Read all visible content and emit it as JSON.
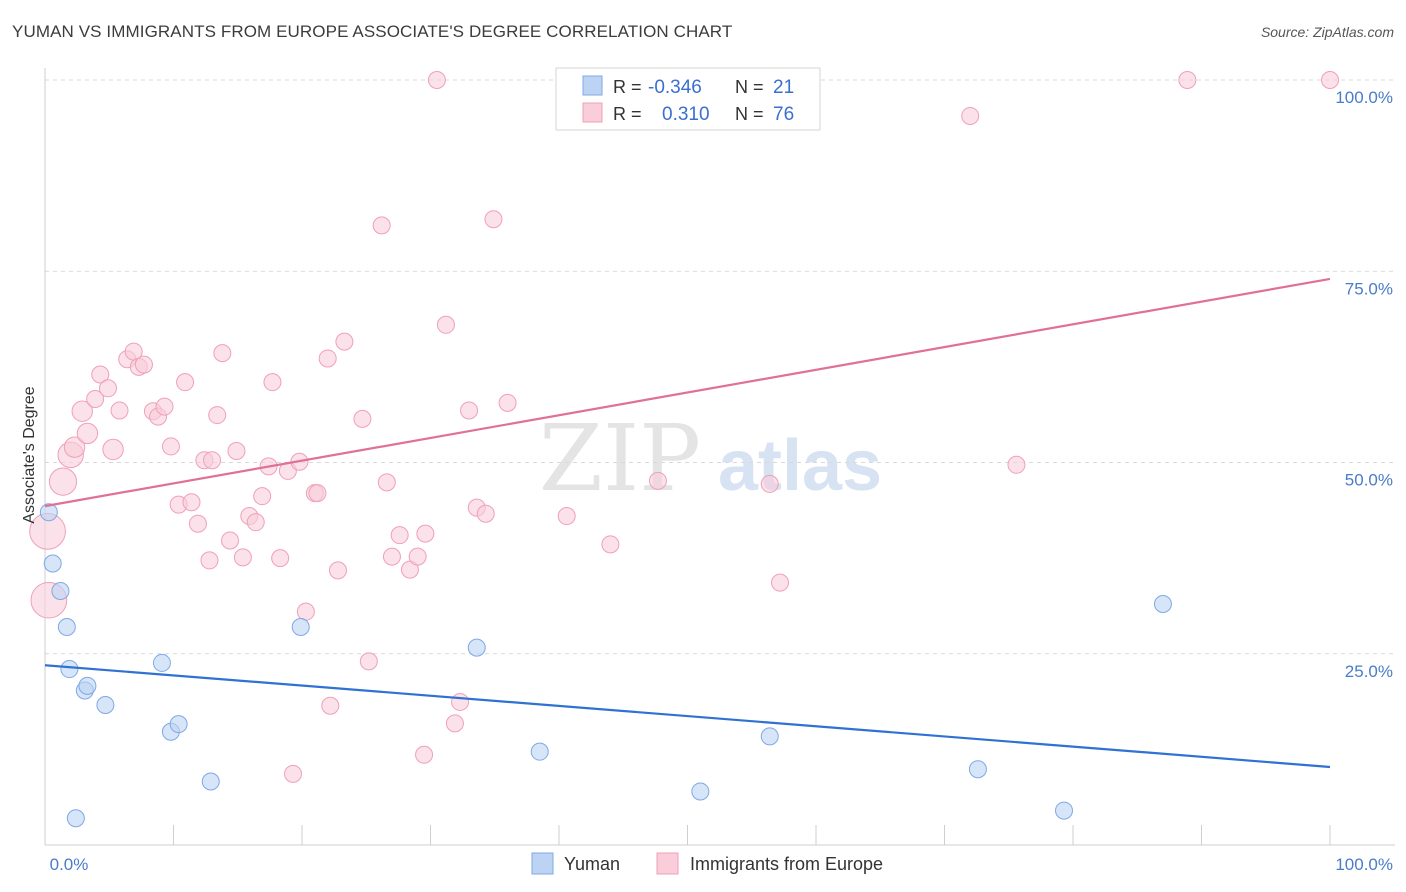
{
  "header": {
    "title": "YUMAN VS IMMIGRANTS FROM EUROPE ASSOCIATE'S DEGREE CORRELATION CHART",
    "source": "Source: ZipAtlas.com"
  },
  "watermark": {
    "part1": "ZIP",
    "part2": "atlas"
  },
  "legend": {
    "rows": [
      {
        "r_label": "R =",
        "r_value": "-0.346",
        "n_label": "N =",
        "n_value": "21",
        "color": "#7fa8e6"
      },
      {
        "r_label": "R =",
        "r_value": "0.310",
        "n_label": "N =",
        "n_value": "76",
        "color": "#f0a0b8"
      }
    ]
  },
  "bottom_legend": [
    "Yuman",
    "Immigrants from Europe"
  ],
  "chart_data": {
    "type": "scatter",
    "title": "YUMAN VS IMMIGRANTS FROM EUROPE ASSOCIATE'S DEGREE CORRELATION CHART",
    "xlabel": "",
    "ylabel": "Associate's Degree",
    "xlim": [
      0,
      100
    ],
    "ylim": [
      0,
      100
    ],
    "x_tick_labels": [
      "0.0%",
      "100.0%"
    ],
    "y_ticks": [
      25,
      50,
      75,
      100
    ],
    "y_tick_labels": [
      "25.0%",
      "50.0%",
      "75.0%",
      "100.0%"
    ],
    "grid": true,
    "legend_position": "top-center",
    "series": [
      {
        "name": "Yuman",
        "color": "#7fa8e6",
        "line_color": "#2f72d2",
        "trend": {
          "x": [
            0,
            100
          ],
          "y": [
            23.5,
            10.2
          ]
        },
        "points": [
          {
            "x": 0.3,
            "y": 43.5,
            "s": 1
          },
          {
            "x": 0.6,
            "y": 36.8,
            "s": 1
          },
          {
            "x": 1.2,
            "y": 33.2,
            "s": 1
          },
          {
            "x": 1.7,
            "y": 28.5,
            "s": 1
          },
          {
            "x": 1.9,
            "y": 23.0,
            "s": 1
          },
          {
            "x": 3.1,
            "y": 20.2,
            "s": 1
          },
          {
            "x": 3.3,
            "y": 20.8,
            "s": 1
          },
          {
            "x": 4.7,
            "y": 18.3,
            "s": 1
          },
          {
            "x": 9.1,
            "y": 23.8,
            "s": 1
          },
          {
            "x": 9.8,
            "y": 14.8,
            "s": 1
          },
          {
            "x": 10.4,
            "y": 15.8,
            "s": 1
          },
          {
            "x": 12.9,
            "y": 8.3,
            "s": 1
          },
          {
            "x": 2.4,
            "y": 3.5,
            "s": 1
          },
          {
            "x": 19.9,
            "y": 28.5,
            "s": 1
          },
          {
            "x": 33.6,
            "y": 25.8,
            "s": 1
          },
          {
            "x": 38.5,
            "y": 12.2,
            "s": 1
          },
          {
            "x": 51.0,
            "y": 7.0,
            "s": 1
          },
          {
            "x": 56.4,
            "y": 14.2,
            "s": 1
          },
          {
            "x": 72.6,
            "y": 9.9,
            "s": 1
          },
          {
            "x": 79.3,
            "y": 4.5,
            "s": 1
          },
          {
            "x": 87.0,
            "y": 31.5,
            "s": 1
          }
        ]
      },
      {
        "name": "Immigrants from Europe",
        "color": "#f0a0b8",
        "line_color": "#e07098",
        "trend": {
          "x": [
            0,
            100
          ],
          "y": [
            44.3,
            74.0
          ]
        },
        "points": [
          {
            "x": 0.2,
            "y": 41.0,
            "s": 2.1
          },
          {
            "x": 0.3,
            "y": 32.0,
            "s": 2.1
          },
          {
            "x": 1.4,
            "y": 47.5,
            "s": 1.6
          },
          {
            "x": 2.0,
            "y": 51.0,
            "s": 1.5
          },
          {
            "x": 2.3,
            "y": 52.0,
            "s": 1.2
          },
          {
            "x": 2.9,
            "y": 56.7,
            "s": 1.2
          },
          {
            "x": 3.3,
            "y": 53.8,
            "s": 1.2
          },
          {
            "x": 3.9,
            "y": 58.3,
            "s": 1
          },
          {
            "x": 4.3,
            "y": 61.5,
            "s": 1
          },
          {
            "x": 4.9,
            "y": 59.7,
            "s": 1
          },
          {
            "x": 5.3,
            "y": 51.7,
            "s": 1.2
          },
          {
            "x": 5.8,
            "y": 56.8,
            "s": 1
          },
          {
            "x": 6.4,
            "y": 63.5,
            "s": 1
          },
          {
            "x": 6.9,
            "y": 64.5,
            "s": 1
          },
          {
            "x": 7.3,
            "y": 62.5,
            "s": 1
          },
          {
            "x": 7.7,
            "y": 62.8,
            "s": 1
          },
          {
            "x": 8.4,
            "y": 56.7,
            "s": 1
          },
          {
            "x": 8.8,
            "y": 56.0,
            "s": 1
          },
          {
            "x": 9.3,
            "y": 57.3,
            "s": 1
          },
          {
            "x": 9.8,
            "y": 52.1,
            "s": 1
          },
          {
            "x": 10.4,
            "y": 44.5,
            "s": 1
          },
          {
            "x": 10.9,
            "y": 60.5,
            "s": 1
          },
          {
            "x": 11.4,
            "y": 44.8,
            "s": 1
          },
          {
            "x": 11.9,
            "y": 42.0,
            "s": 1
          },
          {
            "x": 12.4,
            "y": 50.3,
            "s": 1
          },
          {
            "x": 12.8,
            "y": 37.2,
            "s": 1
          },
          {
            "x": 13.4,
            "y": 56.2,
            "s": 1
          },
          {
            "x": 13.8,
            "y": 64.3,
            "s": 1
          },
          {
            "x": 14.4,
            "y": 39.8,
            "s": 1
          },
          {
            "x": 14.9,
            "y": 51.5,
            "s": 1
          },
          {
            "x": 15.4,
            "y": 37.6,
            "s": 1
          },
          {
            "x": 15.9,
            "y": 43.0,
            "s": 1
          },
          {
            "x": 16.4,
            "y": 42.2,
            "s": 1
          },
          {
            "x": 16.9,
            "y": 45.6,
            "s": 1
          },
          {
            "x": 17.4,
            "y": 49.5,
            "s": 1
          },
          {
            "x": 17.7,
            "y": 60.5,
            "s": 1
          },
          {
            "x": 18.3,
            "y": 37.5,
            "s": 1
          },
          {
            "x": 18.9,
            "y": 48.9,
            "s": 1
          },
          {
            "x": 19.3,
            "y": 9.3,
            "s": 1
          },
          {
            "x": 19.8,
            "y": 50.1,
            "s": 1
          },
          {
            "x": 20.3,
            "y": 30.5,
            "s": 1
          },
          {
            "x": 21.0,
            "y": 46.0,
            "s": 1
          },
          {
            "x": 21.2,
            "y": 46.0,
            "s": 1
          },
          {
            "x": 22.2,
            "y": 18.2,
            "s": 1
          },
          {
            "x": 22.8,
            "y": 35.9,
            "s": 1
          },
          {
            "x": 23.3,
            "y": 65.8,
            "s": 1
          },
          {
            "x": 24.7,
            "y": 55.7,
            "s": 1
          },
          {
            "x": 25.2,
            "y": 24.0,
            "s": 1
          },
          {
            "x": 26.2,
            "y": 81.0,
            "s": 1
          },
          {
            "x": 26.6,
            "y": 47.4,
            "s": 1
          },
          {
            "x": 27.0,
            "y": 37.7,
            "s": 1
          },
          {
            "x": 27.6,
            "y": 40.5,
            "s": 1
          },
          {
            "x": 28.4,
            "y": 36.0,
            "s": 1
          },
          {
            "x": 29.0,
            "y": 37.7,
            "s": 1
          },
          {
            "x": 29.5,
            "y": 11.8,
            "s": 1
          },
          {
            "x": 29.6,
            "y": 40.7,
            "s": 1
          },
          {
            "x": 30.5,
            "y": 100.0,
            "s": 1
          },
          {
            "x": 31.2,
            "y": 68.0,
            "s": 1
          },
          {
            "x": 31.9,
            "y": 15.9,
            "s": 1
          },
          {
            "x": 32.3,
            "y": 18.7,
            "s": 1
          },
          {
            "x": 33.0,
            "y": 56.8,
            "s": 1
          },
          {
            "x": 33.6,
            "y": 44.1,
            "s": 1
          },
          {
            "x": 34.3,
            "y": 43.3,
            "s": 1
          },
          {
            "x": 34.9,
            "y": 81.8,
            "s": 1
          },
          {
            "x": 36.0,
            "y": 57.8,
            "s": 1
          },
          {
            "x": 40.6,
            "y": 43.0,
            "s": 1
          },
          {
            "x": 44.0,
            "y": 39.3,
            "s": 1
          },
          {
            "x": 47.7,
            "y": 47.6,
            "s": 1
          },
          {
            "x": 56.4,
            "y": 47.2,
            "s": 1
          },
          {
            "x": 57.2,
            "y": 34.3,
            "s": 1
          },
          {
            "x": 72.0,
            "y": 95.3,
            "s": 1
          },
          {
            "x": 75.6,
            "y": 49.7,
            "s": 1
          },
          {
            "x": 88.9,
            "y": 100.0,
            "s": 1
          },
          {
            "x": 100.0,
            "y": 100.0,
            "s": 1
          },
          {
            "x": 13.0,
            "y": 50.3,
            "s": 1
          },
          {
            "x": 22.0,
            "y": 63.6,
            "s": 1
          }
        ]
      }
    ]
  }
}
